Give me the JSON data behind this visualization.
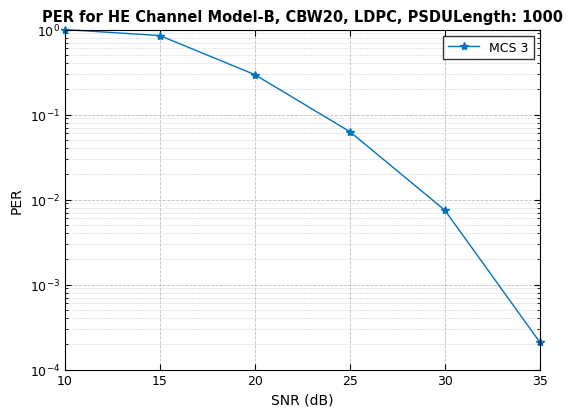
{
  "title": "PER for HE Channel Model-B, CBW20, LDPC, PSDULength: 1000",
  "xlabel": "SNR (dB)",
  "ylabel": "PER",
  "legend_label": "MCS 3",
  "snr": [
    10,
    15,
    20,
    25,
    30,
    35
  ],
  "per": [
    1.0,
    0.85,
    0.295,
    0.063,
    0.0075,
    0.00021
  ],
  "line_color": "#0072BD",
  "xlim": [
    10,
    35
  ],
  "ylim": [
    0.0001,
    1.0
  ],
  "xticks": [
    10,
    15,
    20,
    25,
    30,
    35
  ],
  "yticks": [
    0.0001,
    0.001,
    0.01,
    0.1,
    1.0
  ],
  "grid_color": "#C0C0C0",
  "bg_color": "#FFFFFF",
  "title_fontsize": 10.5,
  "label_fontsize": 10,
  "tick_fontsize": 9,
  "legend_fontsize": 9,
  "linewidth": 1.0,
  "markersize": 6
}
